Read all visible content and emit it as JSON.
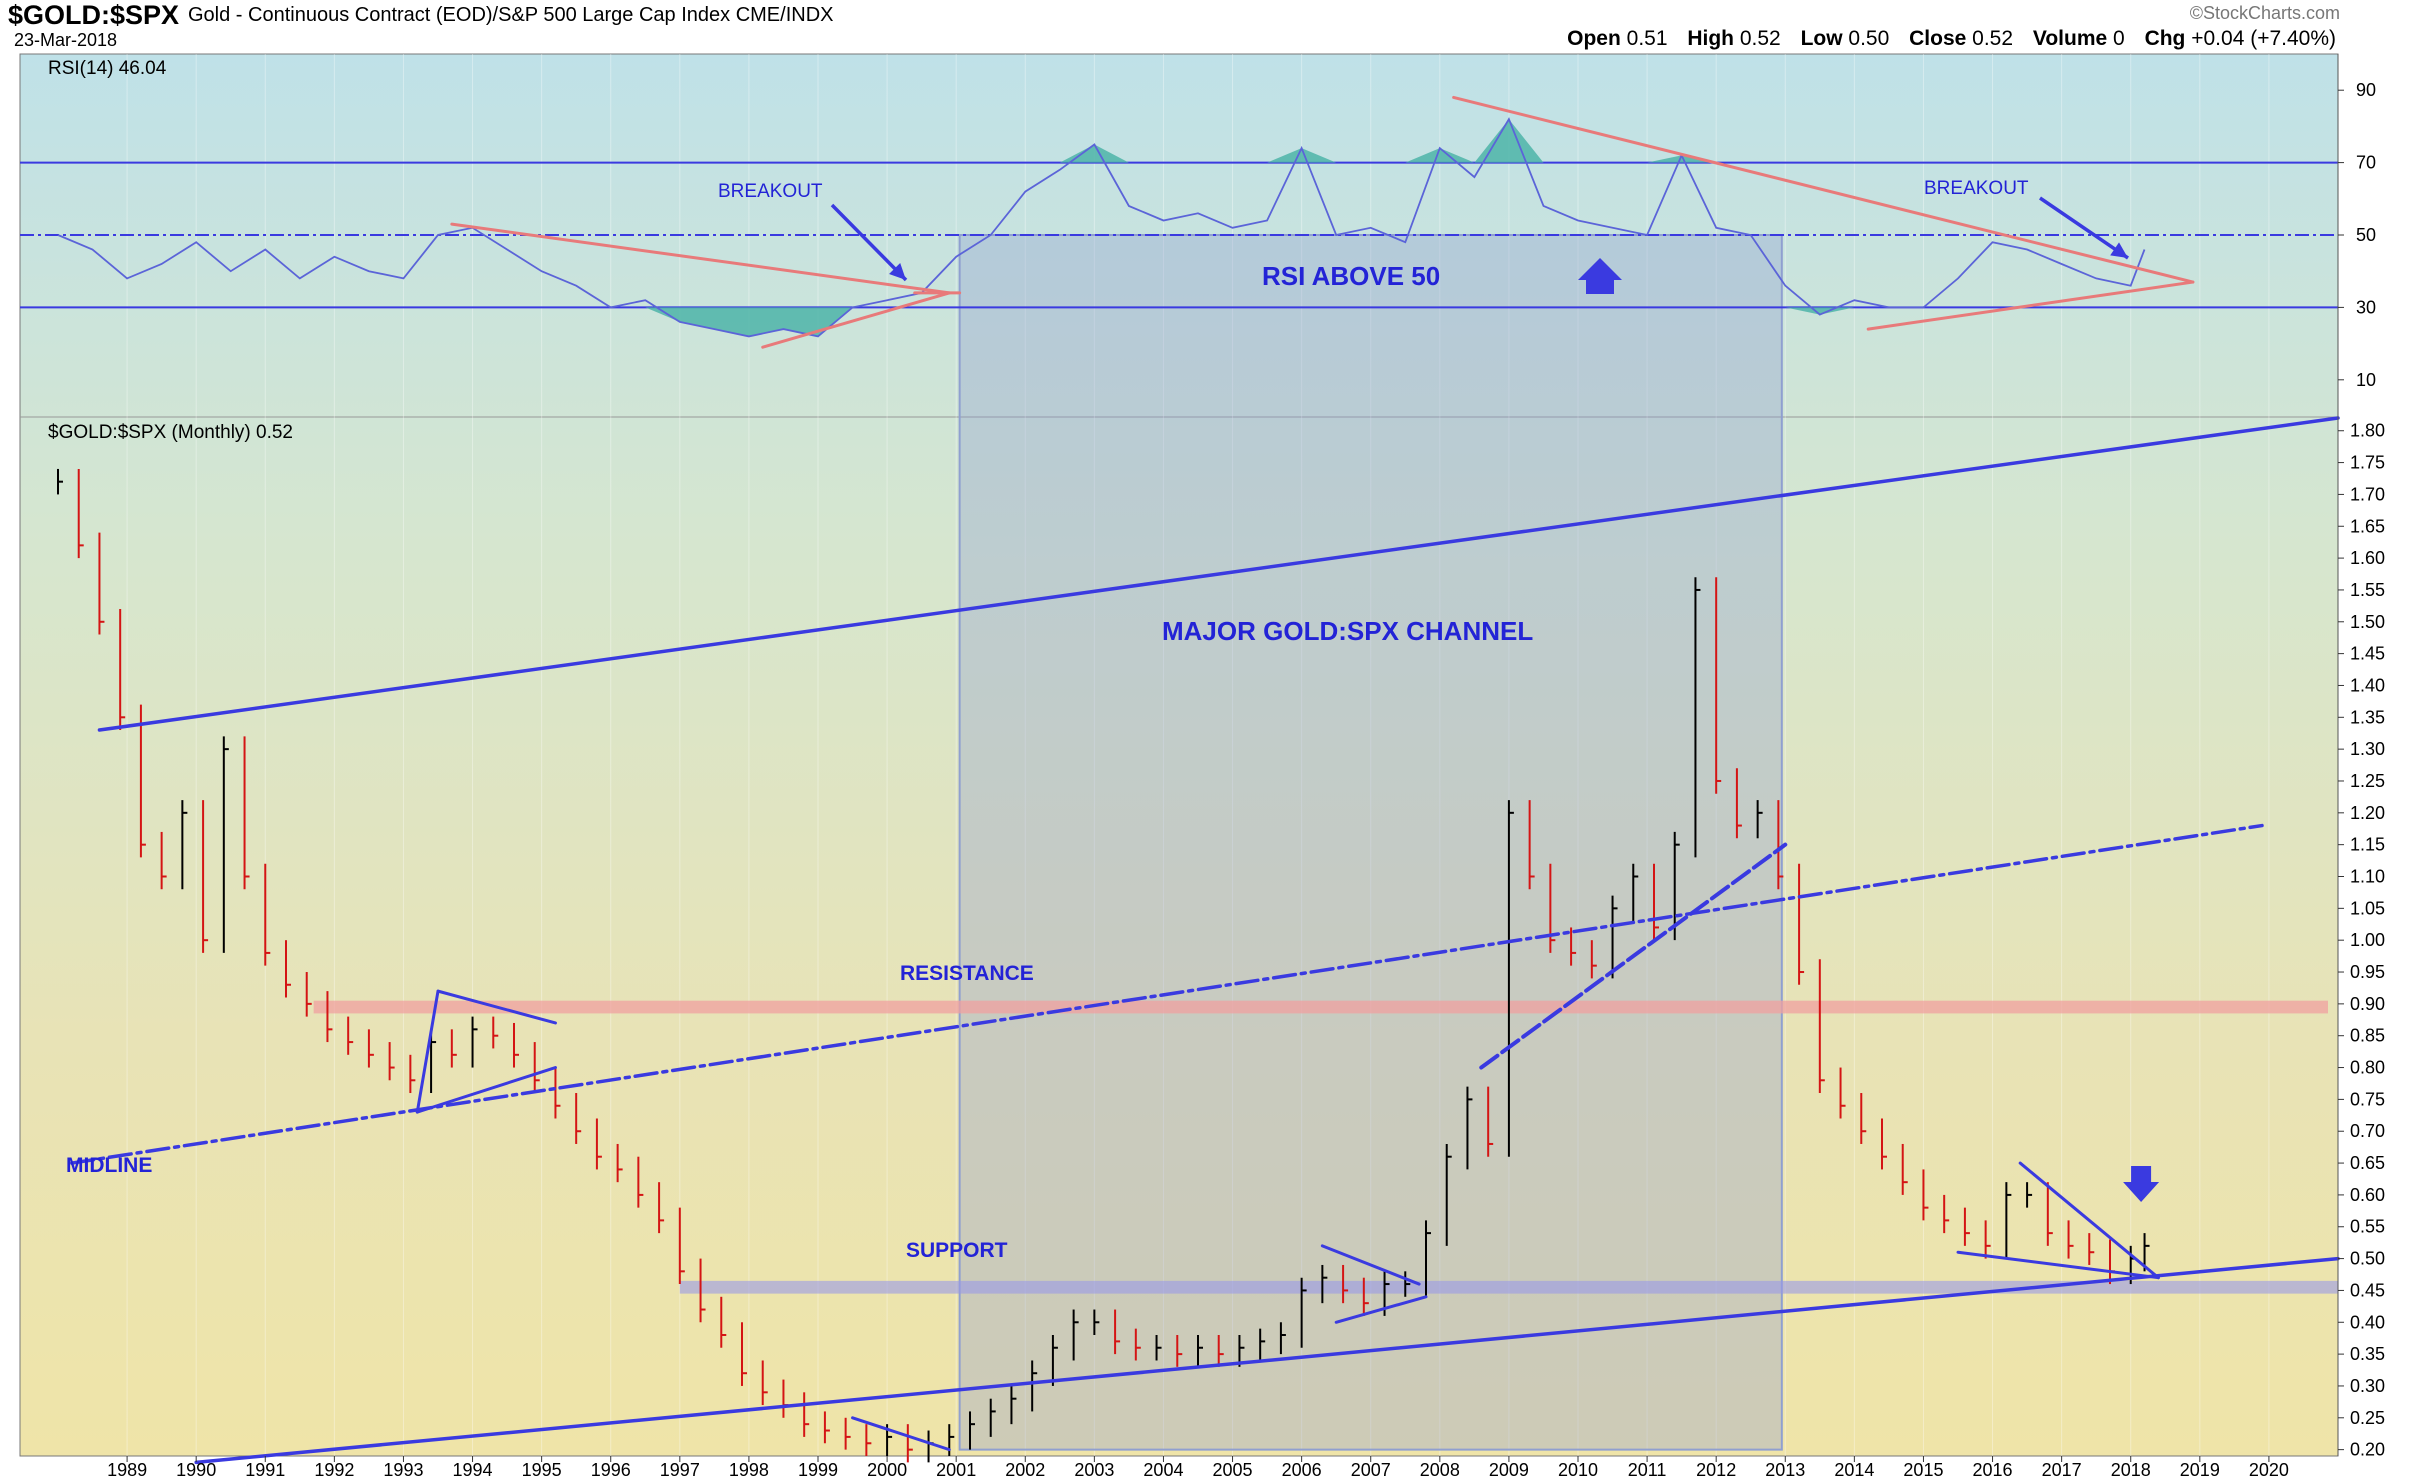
{
  "header": {
    "symbol": "$GOLD:$SPX",
    "description": "Gold - Continuous Contract (EOD)/S&P 500 Large Cap Index CME/INDX",
    "date": "23-Mar-2018",
    "logo": "©StockCharts.com",
    "open_label": "Open",
    "open": "0.51",
    "high_label": "High",
    "high": "0.52",
    "low_label": "Low",
    "low": "0.50",
    "close_label": "Close",
    "close": "0.52",
    "volume_label": "Volume",
    "volume": "0",
    "chg_label": "Chg",
    "chg": "+0.04 (+7.40%)"
  },
  "colors": {
    "rsi_line": "#5b64d8",
    "rsi_fill": "#4eb4a8",
    "trend_red": "#e87a7a",
    "trend_blue": "#3a3ae0",
    "text_blue": "#2323d6",
    "bar_up": "#000000",
    "bar_down": "#d41414",
    "shade": "#8f9fd0"
  },
  "chart_data": [
    {
      "type": "line",
      "title": "RSI(14) 46.04",
      "y_ticks": [
        "90",
        "70",
        "50",
        "30",
        "10"
      ],
      "ylim": [
        0,
        100
      ],
      "reference_lines": [
        70,
        50,
        30
      ],
      "annotations": [
        "BREAKOUT",
        "BREAKOUT",
        "RSI ABOVE 50"
      ],
      "series": [
        {
          "x": [
            1988.0,
            1988.5,
            1989.0,
            1989.5,
            1990.0,
            1990.5,
            1991.0,
            1991.5,
            1992.0,
            1992.5,
            1993.0,
            1993.5,
            1994.0,
            1994.5,
            1995.0,
            1995.5,
            1996.0,
            1996.5,
            1997.0,
            1997.5,
            1998.0,
            1998.5,
            1999.0,
            1999.5,
            2000.0,
            2000.5,
            2001.0,
            2001.5,
            2002.0,
            2002.5,
            2003.0,
            2003.5,
            2004.0,
            2004.5,
            2005.0,
            2005.5,
            2006.0,
            2006.5,
            2007.0,
            2007.5,
            2008.0,
            2008.5,
            2009.0,
            2009.5,
            2010.0,
            2010.5,
            2011.0,
            2011.5,
            2012.0,
            2012.5,
            2013.0,
            2013.5,
            2014.0,
            2014.5,
            2015.0,
            2015.5,
            2016.0,
            2016.5,
            2017.0,
            2017.5,
            2018.0,
            2018.2
          ],
          "values": [
            50,
            46,
            38,
            42,
            48,
            40,
            46,
            38,
            44,
            40,
            38,
            50,
            52,
            46,
            40,
            36,
            30,
            32,
            26,
            24,
            22,
            24,
            22,
            30,
            32,
            34,
            44,
            50,
            62,
            68,
            75,
            58,
            54,
            56,
            52,
            54,
            74,
            50,
            52,
            48,
            74,
            66,
            82,
            58,
            54,
            52,
            50,
            72,
            52,
            50,
            36,
            28,
            32,
            30,
            30,
            38,
            48,
            46,
            42,
            38,
            36,
            46
          ]
        }
      ]
    },
    {
      "type": "bar",
      "title": "$GOLD:$SPX (Monthly) 0.52",
      "x_ticks": [
        "1989",
        "1990",
        "1991",
        "1992",
        "1993",
        "1994",
        "1995",
        "1996",
        "1997",
        "1998",
        "1999",
        "2000",
        "2001",
        "2002",
        "2003",
        "2004",
        "2005",
        "2006",
        "2007",
        "2008",
        "2009",
        "2010",
        "2011",
        "2012",
        "2013",
        "2014",
        "2015",
        "2016",
        "2017",
        "2018",
        "2019",
        "2020"
      ],
      "y_ticks": [
        "1.80",
        "1.75",
        "1.70",
        "1.65",
        "1.60",
        "1.55",
        "1.50",
        "1.45",
        "1.40",
        "1.35",
        "1.30",
        "1.25",
        "1.20",
        "1.15",
        "1.10",
        "1.05",
        "1.00",
        "0.95",
        "0.90",
        "0.85",
        "0.80",
        "0.75",
        "0.70",
        "0.65",
        "0.60",
        "0.55",
        "0.50",
        "0.45",
        "0.40",
        "0.35",
        "0.30",
        "0.25",
        "0.20"
      ],
      "ylim": [
        0.19,
        1.82
      ],
      "annotations": [
        "MAJOR GOLD:SPX CHANNEL",
        "RESISTANCE",
        "SUPPORT",
        "MIDLINE"
      ],
      "resistance_band": [
        0.885,
        0.905
      ],
      "support_band": [
        0.445,
        0.465
      ],
      "series": [
        {
          "name": "$GOLD:$SPX",
          "x": [
            1988.0,
            1988.3,
            1988.6,
            1988.9,
            1989.2,
            1989.5,
            1989.8,
            1990.1,
            1990.4,
            1990.7,
            1991.0,
            1991.3,
            1991.6,
            1991.9,
            1992.2,
            1992.5,
            1992.8,
            1993.1,
            1993.4,
            1993.7,
            1994.0,
            1994.3,
            1994.6,
            1994.9,
            1995.2,
            1995.5,
            1995.8,
            1996.1,
            1996.4,
            1996.7,
            1997.0,
            1997.3,
            1997.6,
            1997.9,
            1998.2,
            1998.5,
            1998.8,
            1999.1,
            1999.4,
            1999.7,
            2000.0,
            2000.3,
            2000.6,
            2000.9,
            2001.2,
            2001.5,
            2001.8,
            2002.1,
            2002.4,
            2002.7,
            2003.0,
            2003.3,
            2003.6,
            2003.9,
            2004.2,
            2004.5,
            2004.8,
            2005.1,
            2005.4,
            2005.7,
            2006.0,
            2006.3,
            2006.6,
            2006.9,
            2007.2,
            2007.5,
            2007.8,
            2008.1,
            2008.4,
            2008.7,
            2009.0,
            2009.3,
            2009.6,
            2009.9,
            2010.2,
            2010.5,
            2010.8,
            2011.1,
            2011.4,
            2011.7,
            2012.0,
            2012.3,
            2012.6,
            2012.9,
            2013.2,
            2013.5,
            2013.8,
            2014.1,
            2014.4,
            2014.7,
            2015.0,
            2015.3,
            2015.6,
            2015.9,
            2016.2,
            2016.5,
            2016.8,
            2017.1,
            2017.4,
            2017.7,
            2018.0,
            2018.2
          ],
          "values": [
            1.72,
            1.62,
            1.5,
            1.35,
            1.15,
            1.1,
            1.2,
            1.0,
            1.3,
            1.1,
            0.98,
            0.93,
            0.9,
            0.86,
            0.84,
            0.82,
            0.8,
            0.78,
            0.84,
            0.82,
            0.86,
            0.85,
            0.82,
            0.78,
            0.74,
            0.7,
            0.66,
            0.64,
            0.6,
            0.56,
            0.48,
            0.42,
            0.38,
            0.32,
            0.29,
            0.27,
            0.24,
            0.23,
            0.22,
            0.21,
            0.22,
            0.2,
            0.21,
            0.22,
            0.24,
            0.26,
            0.28,
            0.32,
            0.36,
            0.4,
            0.4,
            0.37,
            0.36,
            0.36,
            0.35,
            0.36,
            0.35,
            0.36,
            0.37,
            0.38,
            0.45,
            0.47,
            0.45,
            0.43,
            0.46,
            0.46,
            0.54,
            0.66,
            0.75,
            0.68,
            1.2,
            1.1,
            1.0,
            0.98,
            0.96,
            1.05,
            1.1,
            1.02,
            1.15,
            1.55,
            1.25,
            1.18,
            1.2,
            1.1,
            0.95,
            0.78,
            0.74,
            0.7,
            0.66,
            0.62,
            0.58,
            0.56,
            0.54,
            0.52,
            0.6,
            0.6,
            0.54,
            0.52,
            0.51,
            0.48,
            0.5,
            0.52
          ]
        }
      ]
    }
  ]
}
